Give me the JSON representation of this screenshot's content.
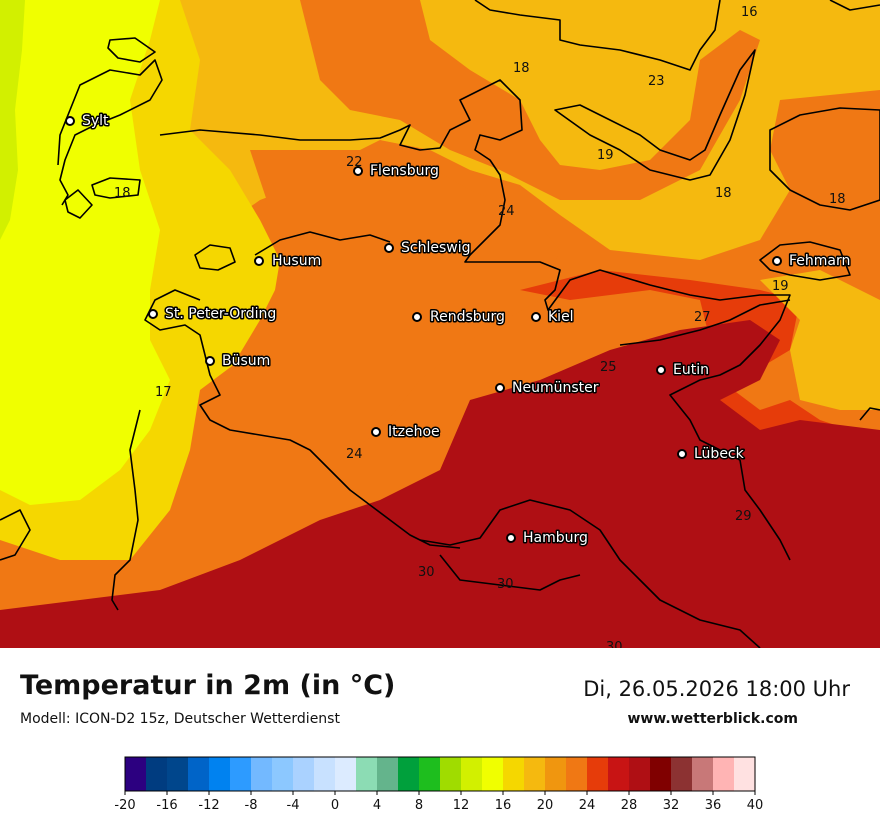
{
  "header": {
    "title": "Temperatur in 2m (in °C)",
    "model": "Modell: ICON-D2 15z, Deutscher Wetterdienst",
    "datetime": "Di, 26.05.2026 18:00 Uhr",
    "website": "www.wetterblick.com"
  },
  "cities": [
    {
      "name": "Sylt"
    },
    {
      "name": "Flensburg"
    },
    {
      "name": "Schleswig"
    },
    {
      "name": "Husum"
    },
    {
      "name": "St. Peter-Ording"
    },
    {
      "name": "Büsum"
    },
    {
      "name": "Rendsburg"
    },
    {
      "name": "Kiel"
    },
    {
      "name": "Neumünster"
    },
    {
      "name": "Eutin"
    },
    {
      "name": "Fehmarn"
    },
    {
      "name": "Itzehoe"
    },
    {
      "name": "Lübeck"
    },
    {
      "name": "Hamburg"
    }
  ],
  "isotherm_labels": [
    "16",
    "18",
    "23",
    "19",
    "22",
    "18",
    "24",
    "18",
    "18",
    "19",
    "27",
    "25",
    "17",
    "24",
    "29",
    "30",
    "30",
    "30"
  ],
  "legend": {
    "colors": [
      "#2c0080",
      "#003c80",
      "#00468c",
      "#0064c8",
      "#0082f0",
      "#2d9bff",
      "#73b9ff",
      "#8cc8ff",
      "#aad2ff",
      "#c8e1ff",
      "#dcebff",
      "#8cdcb4",
      "#64b48c",
      "#00a03c",
      "#1ebe1e",
      "#a0dc00",
      "#d2f000",
      "#f0ff00",
      "#f5d700",
      "#f5b90f",
      "#f0960f",
      "#f07814",
      "#e63c0a",
      "#c81414",
      "#af0f14",
      "#800000",
      "#8c3232",
      "#c87878",
      "#ffb4b4",
      "#ffe1e1"
    ],
    "tick_labels": [
      "-20",
      "-16",
      "-12",
      "-8",
      "-4",
      "0",
      "4",
      "8",
      "12",
      "16",
      "20",
      "24",
      "28",
      "32",
      "36",
      "40"
    ],
    "range": [
      -20,
      40
    ]
  }
}
